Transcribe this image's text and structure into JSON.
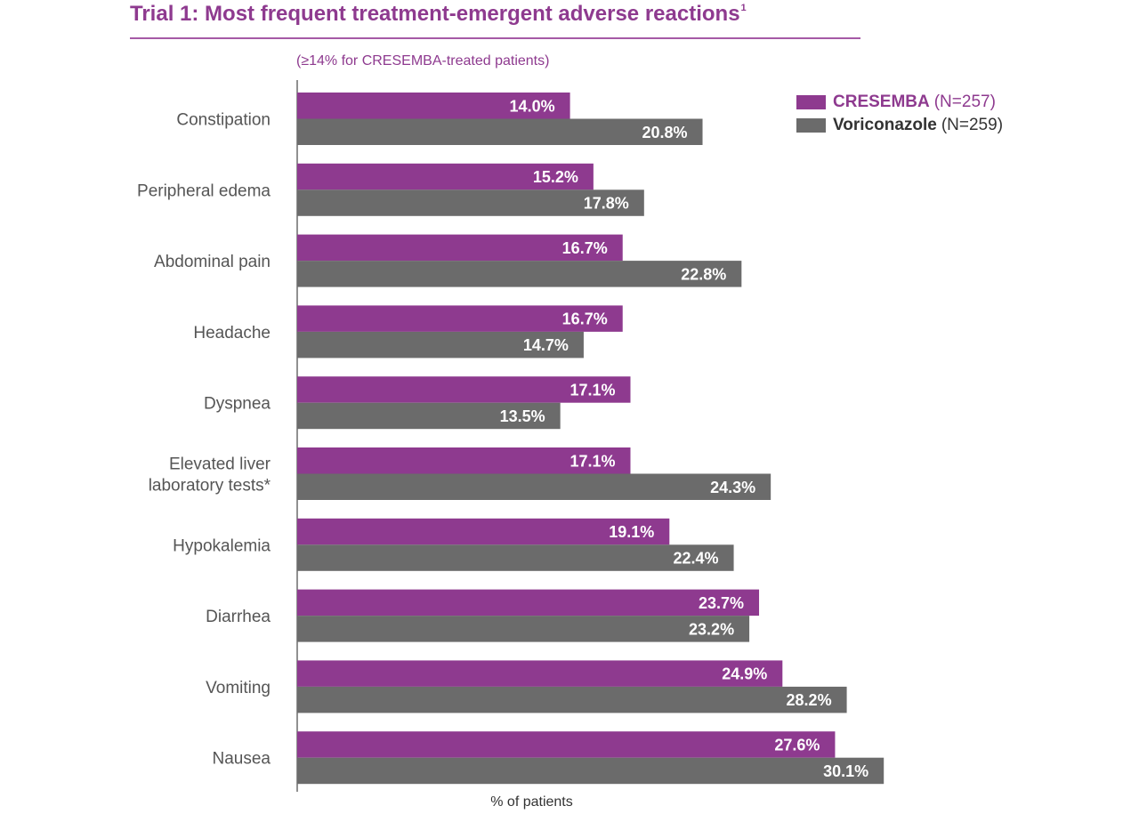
{
  "header": {
    "title": "Trial 1: Most frequent treatment-emergent adverse reactions",
    "title_sup": "1",
    "subtitle": "(≥14% for CRESEMBA-treated patients)"
  },
  "legend": [
    {
      "name": "CRESEMBA",
      "n": "(N=257)",
      "color": "#8e3a8f",
      "text_color": "#8e3a8f"
    },
    {
      "name": "Voriconazole",
      "n": "(N=259)",
      "color": "#6b6b6b",
      "text_color": "#333333"
    }
  ],
  "chart_data": {
    "type": "bar",
    "orientation": "horizontal",
    "categories": [
      "Constipation",
      "Peripheral edema",
      "Abdominal pain",
      "Headache",
      "Dyspnea",
      "Elevated liver laboratory tests*",
      "Hypokalemia",
      "Diarrhea",
      "Vomiting",
      "Nausea"
    ],
    "category_lines": [
      [
        "Constipation"
      ],
      [
        "Peripheral edema"
      ],
      [
        "Abdominal pain"
      ],
      [
        "Headache"
      ],
      [
        "Dyspnea"
      ],
      [
        "Elevated liver",
        "laboratory tests*"
      ],
      [
        "Hypokalemia"
      ],
      [
        "Diarrhea"
      ],
      [
        "Vomiting"
      ],
      [
        "Nausea"
      ]
    ],
    "series": [
      {
        "name": "CRESEMBA (N=257)",
        "color": "#8e3a8f",
        "values": [
          14.0,
          15.2,
          16.7,
          16.7,
          17.1,
          17.1,
          19.1,
          23.7,
          24.9,
          27.6
        ],
        "labels": [
          "14.0%",
          "15.2%",
          "16.7%",
          "16.7%",
          "17.1%",
          "17.1%",
          "19.1%",
          "23.7%",
          "24.9%",
          "27.6%"
        ]
      },
      {
        "name": "Voriconazole (N=259)",
        "color": "#6b6b6b",
        "values": [
          20.8,
          17.8,
          22.8,
          14.7,
          13.5,
          24.3,
          22.4,
          23.2,
          28.2,
          30.1
        ],
        "labels": [
          "20.8%",
          "17.8%",
          "22.8%",
          "14.7%",
          "13.5%",
          "24.3%",
          "22.4%",
          "23.2%",
          "28.2%",
          "30.1%"
        ]
      }
    ],
    "xlabel": "% of patients",
    "xlim": [
      0,
      30.1
    ],
    "grid": false,
    "legend_position": "top-right"
  }
}
